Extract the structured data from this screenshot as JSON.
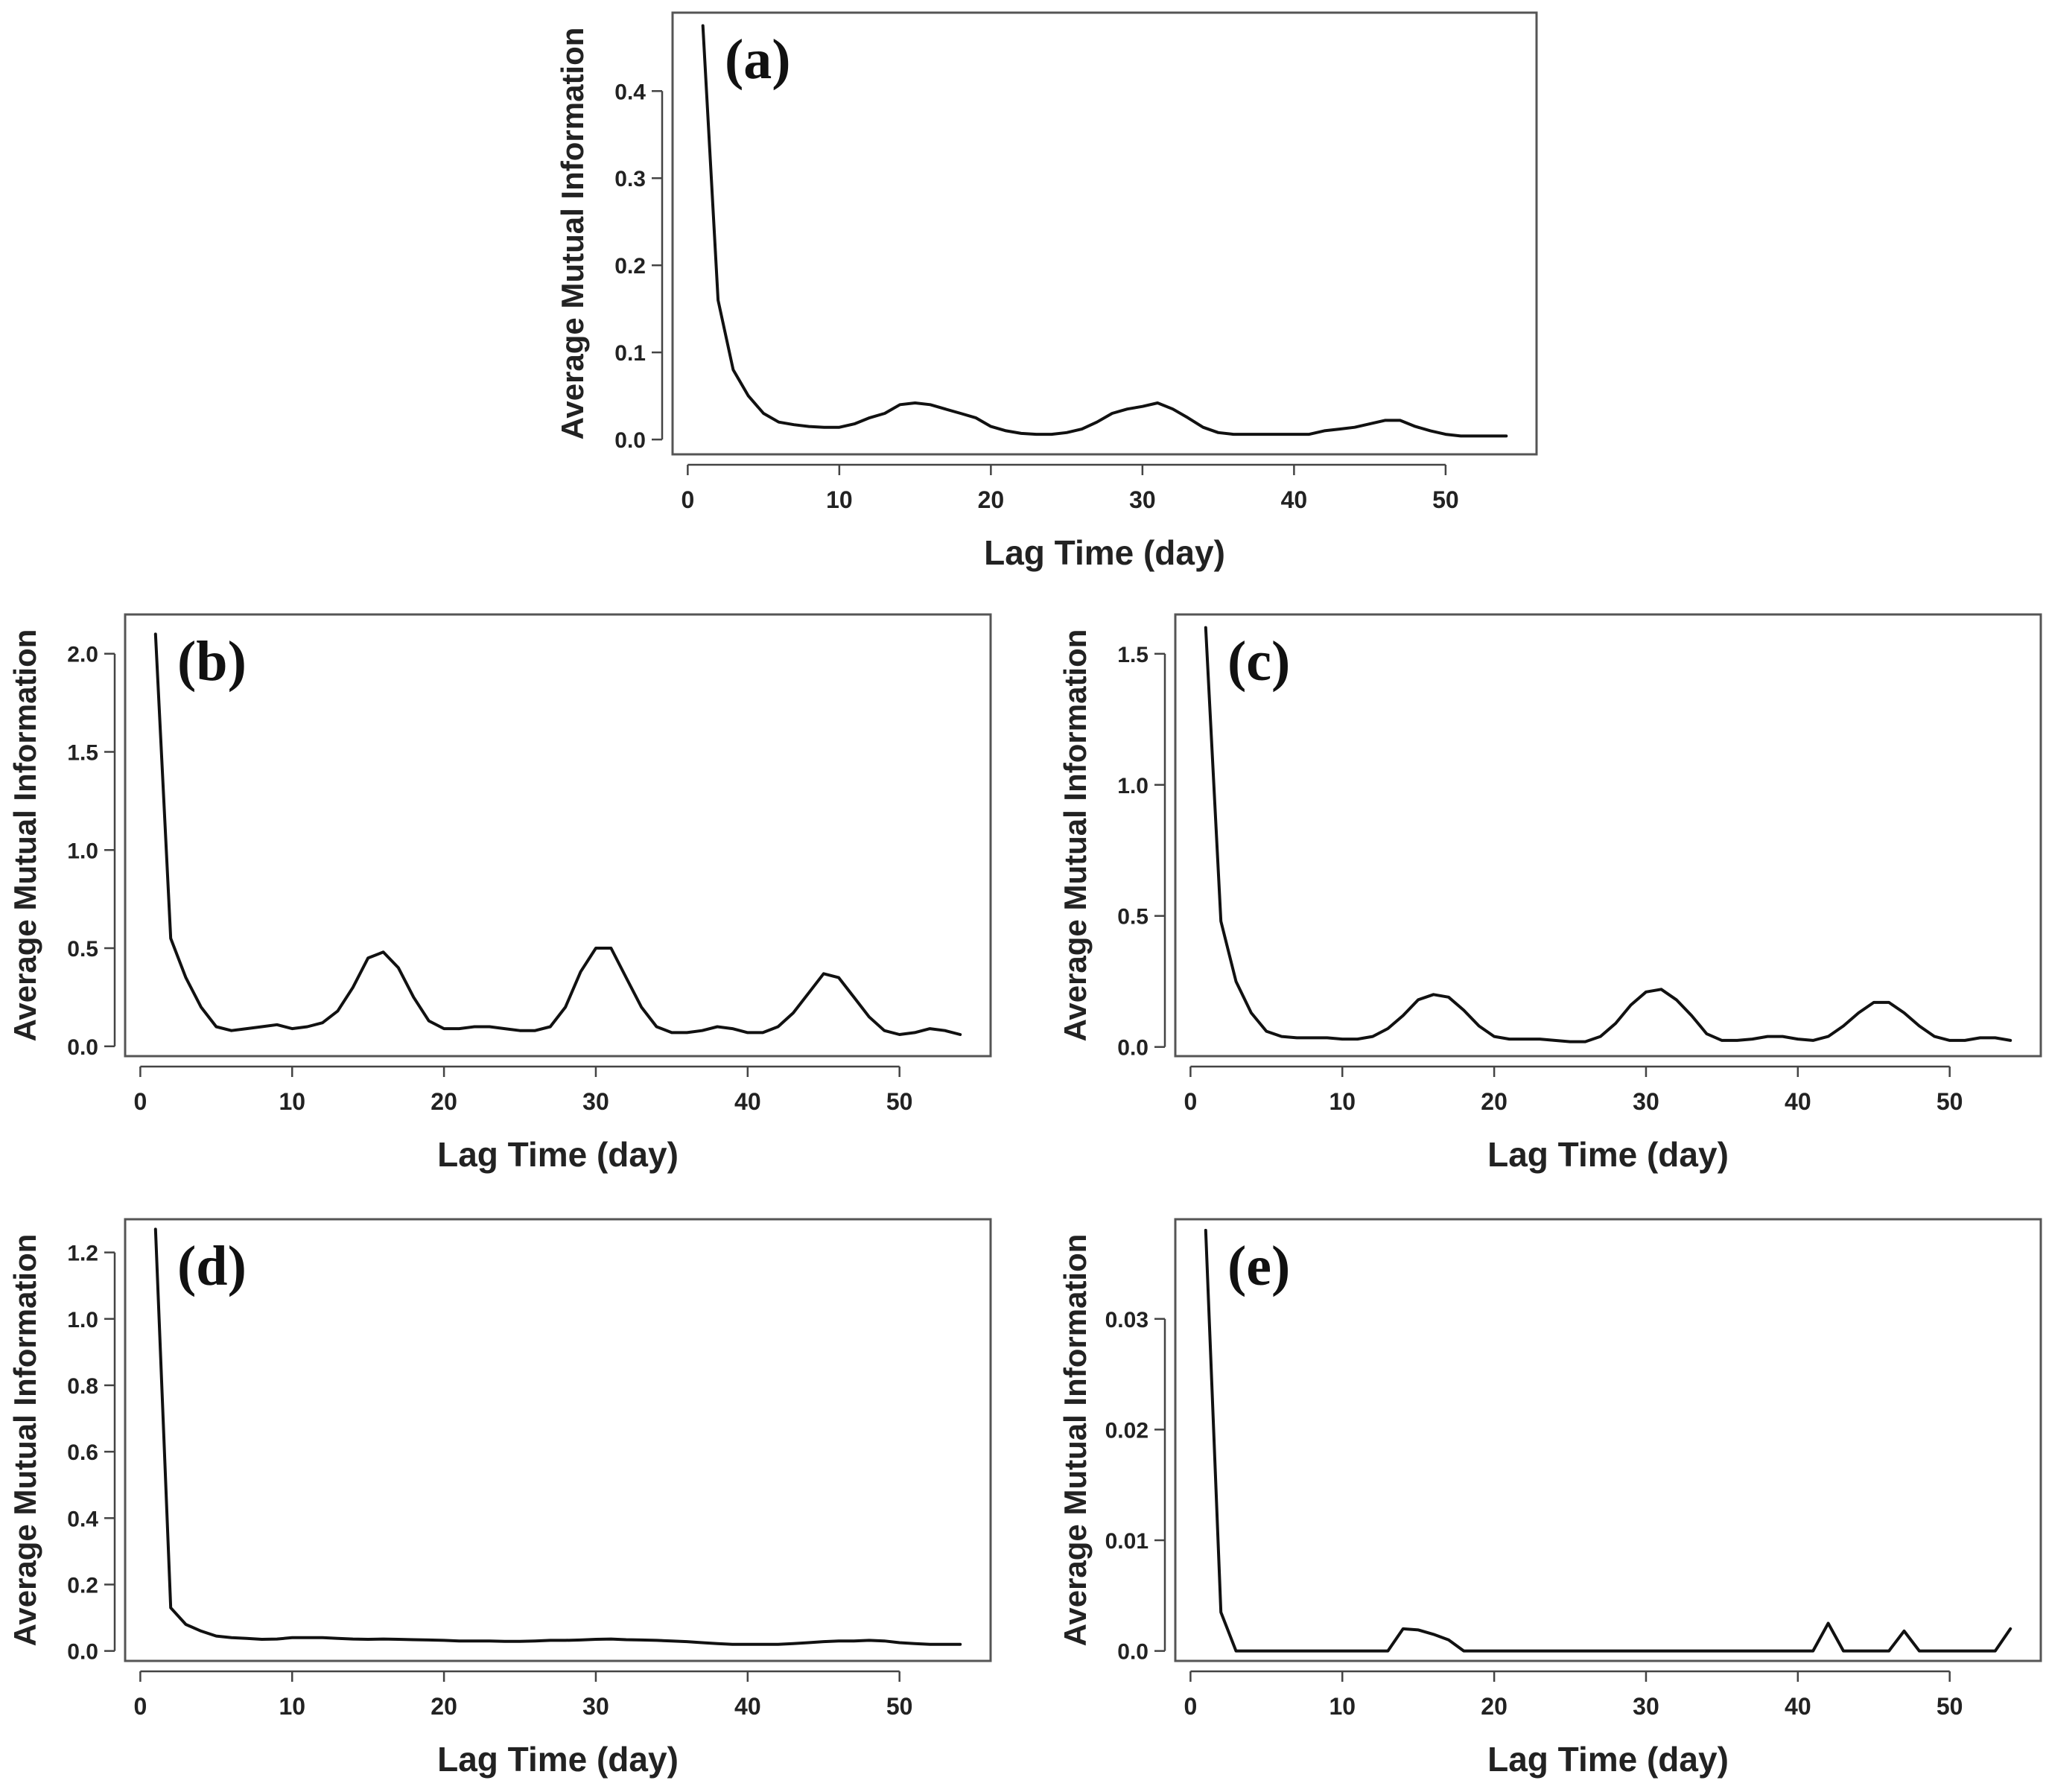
{
  "figure": {
    "background": "#ffffff",
    "line_color": "#111111",
    "frame_color": "#555555"
  },
  "chart_data": [
    {
      "id": "a",
      "type": "line",
      "panel_label": "(a)",
      "xlabel": "Lag Time (day)",
      "ylabel": "Average Mutual Information",
      "xlim": [
        -1,
        56
      ],
      "ylim": [
        -0.017,
        0.49
      ],
      "xticks": [
        0,
        10,
        20,
        30,
        40,
        50
      ],
      "xtick_labels": [
        "0",
        "10",
        "20",
        "30",
        "40",
        "50"
      ],
      "yticks": [
        0,
        0.1,
        0.2,
        0.3,
        0.4
      ],
      "ytick_labels": [
        "0.0",
        "0.1",
        "0.2",
        "0.3",
        "0.4"
      ],
      "x": [
        1,
        2,
        3,
        4,
        5,
        6,
        7,
        8,
        9,
        10,
        11,
        12,
        13,
        14,
        15,
        16,
        17,
        18,
        19,
        20,
        21,
        22,
        23,
        24,
        25,
        26,
        27,
        28,
        29,
        30,
        31,
        32,
        33,
        34,
        35,
        36,
        37,
        38,
        39,
        40,
        41,
        42,
        43,
        44,
        45,
        46,
        47,
        48,
        49,
        50,
        51,
        52,
        53,
        54
      ],
      "y": [
        0.475,
        0.16,
        0.08,
        0.05,
        0.03,
        0.02,
        0.017,
        0.015,
        0.014,
        0.014,
        0.018,
        0.025,
        0.03,
        0.04,
        0.042,
        0.04,
        0.035,
        0.03,
        0.025,
        0.015,
        0.01,
        0.007,
        0.006,
        0.006,
        0.008,
        0.012,
        0.02,
        0.03,
        0.035,
        0.038,
        0.042,
        0.035,
        0.025,
        0.014,
        0.008,
        0.006,
        0.006,
        0.006,
        0.006,
        0.006,
        0.006,
        0.01,
        0.012,
        0.014,
        0.018,
        0.022,
        0.022,
        0.015,
        0.01,
        0.006,
        0.004,
        0.004,
        0.004,
        0.004
      ]
    },
    {
      "id": "b",
      "type": "line",
      "panel_label": "(b)",
      "xlabel": "Lag Time (day)",
      "ylabel": "Average Mutual Information",
      "xlim": [
        -1,
        56
      ],
      "ylim": [
        -0.05,
        2.2
      ],
      "xticks": [
        0,
        10,
        20,
        30,
        40,
        50
      ],
      "xtick_labels": [
        "0",
        "10",
        "20",
        "30",
        "40",
        "50"
      ],
      "yticks": [
        0,
        0.5,
        1,
        1.5,
        2
      ],
      "ytick_labels": [
        "0.0",
        "0.5",
        "1.0",
        "1.5",
        "2.0"
      ],
      "x": [
        1,
        2,
        3,
        4,
        5,
        6,
        7,
        8,
        9,
        10,
        11,
        12,
        13,
        14,
        15,
        16,
        17,
        18,
        19,
        20,
        21,
        22,
        23,
        24,
        25,
        26,
        27,
        28,
        29,
        30,
        31,
        32,
        33,
        34,
        35,
        36,
        37,
        38,
        39,
        40,
        41,
        42,
        43,
        44,
        45,
        46,
        47,
        48,
        49,
        50,
        51,
        52,
        53,
        54
      ],
      "y": [
        2.1,
        0.55,
        0.35,
        0.2,
        0.1,
        0.08,
        0.09,
        0.1,
        0.11,
        0.09,
        0.1,
        0.12,
        0.18,
        0.3,
        0.45,
        0.48,
        0.4,
        0.25,
        0.13,
        0.09,
        0.09,
        0.1,
        0.1,
        0.09,
        0.08,
        0.08,
        0.1,
        0.2,
        0.38,
        0.5,
        0.5,
        0.35,
        0.2,
        0.1,
        0.07,
        0.07,
        0.08,
        0.1,
        0.09,
        0.07,
        0.07,
        0.1,
        0.17,
        0.27,
        0.37,
        0.35,
        0.25,
        0.15,
        0.08,
        0.06,
        0.07,
        0.09,
        0.08,
        0.06
      ]
    },
    {
      "id": "c",
      "type": "line",
      "panel_label": "(c)",
      "xlabel": "Lag Time (day)",
      "ylabel": "Average Mutual Information",
      "xlim": [
        -1,
        56
      ],
      "ylim": [
        -0.035,
        1.65
      ],
      "xticks": [
        0,
        10,
        20,
        30,
        40,
        50
      ],
      "xtick_labels": [
        "0",
        "10",
        "20",
        "30",
        "40",
        "50"
      ],
      "yticks": [
        0,
        0.5,
        1,
        1.5
      ],
      "ytick_labels": [
        "0.0",
        "0.5",
        "1.0",
        "1.5"
      ],
      "x": [
        1,
        2,
        3,
        4,
        5,
        6,
        7,
        8,
        9,
        10,
        11,
        12,
        13,
        14,
        15,
        16,
        17,
        18,
        19,
        20,
        21,
        22,
        23,
        24,
        25,
        26,
        27,
        28,
        29,
        30,
        31,
        32,
        33,
        34,
        35,
        36,
        37,
        38,
        39,
        40,
        41,
        42,
        43,
        44,
        45,
        46,
        47,
        48,
        49,
        50,
        51,
        52,
        53,
        54
      ],
      "y": [
        1.6,
        0.48,
        0.25,
        0.13,
        0.06,
        0.04,
        0.035,
        0.035,
        0.035,
        0.03,
        0.03,
        0.04,
        0.07,
        0.12,
        0.18,
        0.2,
        0.19,
        0.14,
        0.08,
        0.04,
        0.03,
        0.03,
        0.03,
        0.025,
        0.02,
        0.02,
        0.04,
        0.09,
        0.16,
        0.21,
        0.22,
        0.18,
        0.12,
        0.05,
        0.025,
        0.025,
        0.03,
        0.04,
        0.04,
        0.03,
        0.025,
        0.04,
        0.08,
        0.13,
        0.17,
        0.17,
        0.13,
        0.08,
        0.04,
        0.025,
        0.025,
        0.035,
        0.035,
        0.025
      ]
    },
    {
      "id": "d",
      "type": "line",
      "panel_label": "(d)",
      "xlabel": "Lag Time (day)",
      "ylabel": "Average Mutual Information",
      "xlim": [
        -1,
        56
      ],
      "ylim": [
        -0.03,
        1.3
      ],
      "xticks": [
        0,
        10,
        20,
        30,
        40,
        50
      ],
      "xtick_labels": [
        "0",
        "10",
        "20",
        "30",
        "40",
        "50"
      ],
      "yticks": [
        0,
        0.2,
        0.4,
        0.6,
        0.8,
        1.0,
        1.2
      ],
      "ytick_labels": [
        "0.0",
        "0.2",
        "0.4",
        "0.6",
        "0.8",
        "1.0",
        "1.2"
      ],
      "x": [
        1,
        2,
        3,
        4,
        5,
        6,
        7,
        8,
        9,
        10,
        11,
        12,
        13,
        14,
        15,
        16,
        17,
        18,
        19,
        20,
        21,
        22,
        23,
        24,
        25,
        26,
        27,
        28,
        29,
        30,
        31,
        32,
        33,
        34,
        35,
        36,
        37,
        38,
        39,
        40,
        41,
        42,
        43,
        44,
        45,
        46,
        47,
        48,
        49,
        50,
        51,
        52,
        53,
        54
      ],
      "y": [
        1.27,
        0.13,
        0.08,
        0.06,
        0.045,
        0.04,
        0.038,
        0.035,
        0.036,
        0.04,
        0.04,
        0.04,
        0.038,
        0.036,
        0.035,
        0.036,
        0.035,
        0.034,
        0.033,
        0.032,
        0.03,
        0.03,
        0.03,
        0.029,
        0.029,
        0.03,
        0.032,
        0.032,
        0.033,
        0.035,
        0.036,
        0.034,
        0.033,
        0.032,
        0.03,
        0.028,
        0.025,
        0.022,
        0.02,
        0.02,
        0.02,
        0.02,
        0.022,
        0.025,
        0.028,
        0.03,
        0.03,
        0.032,
        0.03,
        0.025,
        0.022,
        0.02,
        0.02,
        0.02
      ]
    },
    {
      "id": "e",
      "type": "line",
      "panel_label": "(e)",
      "xlabel": "Lag Time (day)",
      "ylabel": "Average Mutual Information",
      "xlim": [
        -1,
        56
      ],
      "ylim": [
        -0.0009,
        0.039
      ],
      "xticks": [
        0,
        10,
        20,
        30,
        40,
        50
      ],
      "xtick_labels": [
        "0",
        "10",
        "20",
        "30",
        "40",
        "50"
      ],
      "yticks": [
        0,
        0.01,
        0.02,
        0.03
      ],
      "ytick_labels": [
        "0.0",
        "0.01",
        "0.02",
        "0.03"
      ],
      "x": [
        1,
        2,
        3,
        4,
        5,
        6,
        7,
        8,
        9,
        10,
        11,
        12,
        13,
        14,
        15,
        16,
        17,
        18,
        19,
        20,
        21,
        22,
        23,
        24,
        25,
        26,
        27,
        28,
        29,
        30,
        31,
        32,
        33,
        34,
        35,
        36,
        37,
        38,
        39,
        40,
        41,
        42,
        43,
        44,
        45,
        46,
        47,
        48,
        49,
        50,
        51,
        52,
        53,
        54
      ],
      "y": [
        0.038,
        0.0035,
        0,
        0,
        0,
        0,
        0,
        0,
        0,
        0,
        0,
        0,
        0,
        0.002,
        0.0019,
        0.0015,
        0.001,
        0,
        0,
        0,
        0,
        0,
        0,
        0,
        0,
        0,
        0,
        0,
        0,
        0,
        0,
        0,
        0,
        0,
        0,
        0,
        0,
        0,
        0,
        0,
        0,
        0.0025,
        0,
        0,
        0,
        0,
        0.0018,
        0,
        0,
        0,
        0,
        0,
        0,
        0.002
      ]
    }
  ]
}
